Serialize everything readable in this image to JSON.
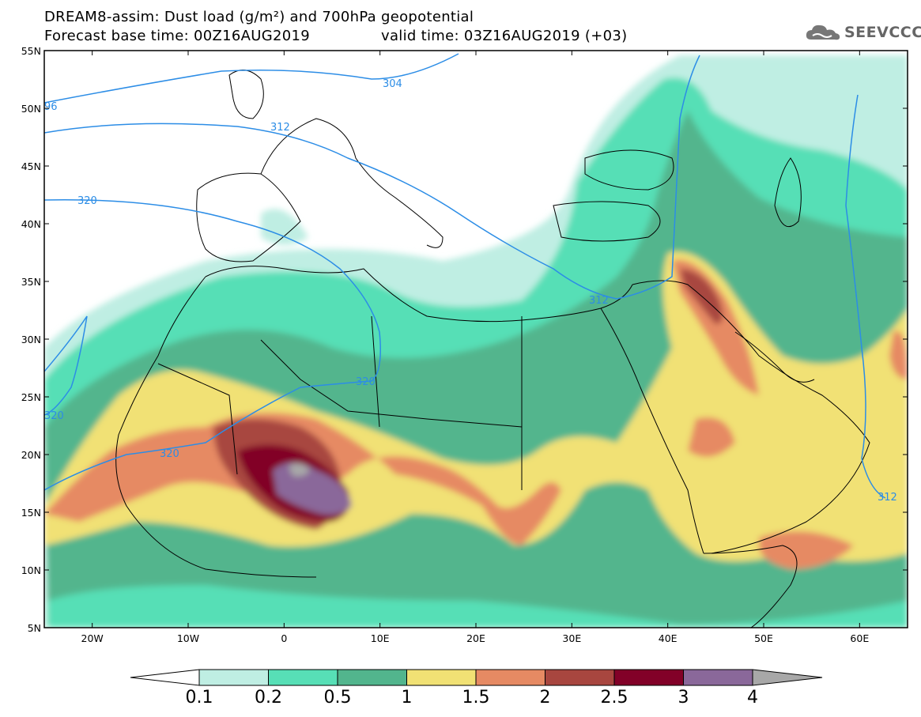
{
  "header": {
    "title_line1": "DREAM8-assim: Dust load (g/m²) and 700hPa geopotential",
    "title_line2": "Forecast base time: 00Z16AUG2019",
    "valid_time": "valid time: 03Z16AUG2019 (+03)",
    "logo_text": "SEEVCCC"
  },
  "map": {
    "lat_labels": [
      "55N",
      "50N",
      "45N",
      "40N",
      "35N",
      "30N",
      "25N",
      "20N",
      "15N",
      "10N",
      "5N"
    ],
    "lon_labels": [
      "20W",
      "10W",
      "0",
      "10E",
      "20E",
      "30E",
      "40E",
      "50E",
      "60E"
    ],
    "contour_labels": [
      "304",
      "96",
      "312",
      "320",
      "320",
      "320",
      "320",
      "312",
      "312"
    ]
  },
  "colorbar": {
    "levels": [
      "0.1",
      "0.2",
      "0.5",
      "1",
      "1.5",
      "2",
      "2.5",
      "3",
      "4"
    ],
    "colors": [
      "#bfeee3",
      "#57dfb6",
      "#52b58d",
      "#f1e174",
      "#e68a63",
      "#a8463f",
      "#820128",
      "#8a689a"
    ],
    "under_color": "#ffffff",
    "over_color": "#a8a8a8"
  },
  "colors": {
    "contour": "#2c8de6",
    "coast": "#000000"
  }
}
